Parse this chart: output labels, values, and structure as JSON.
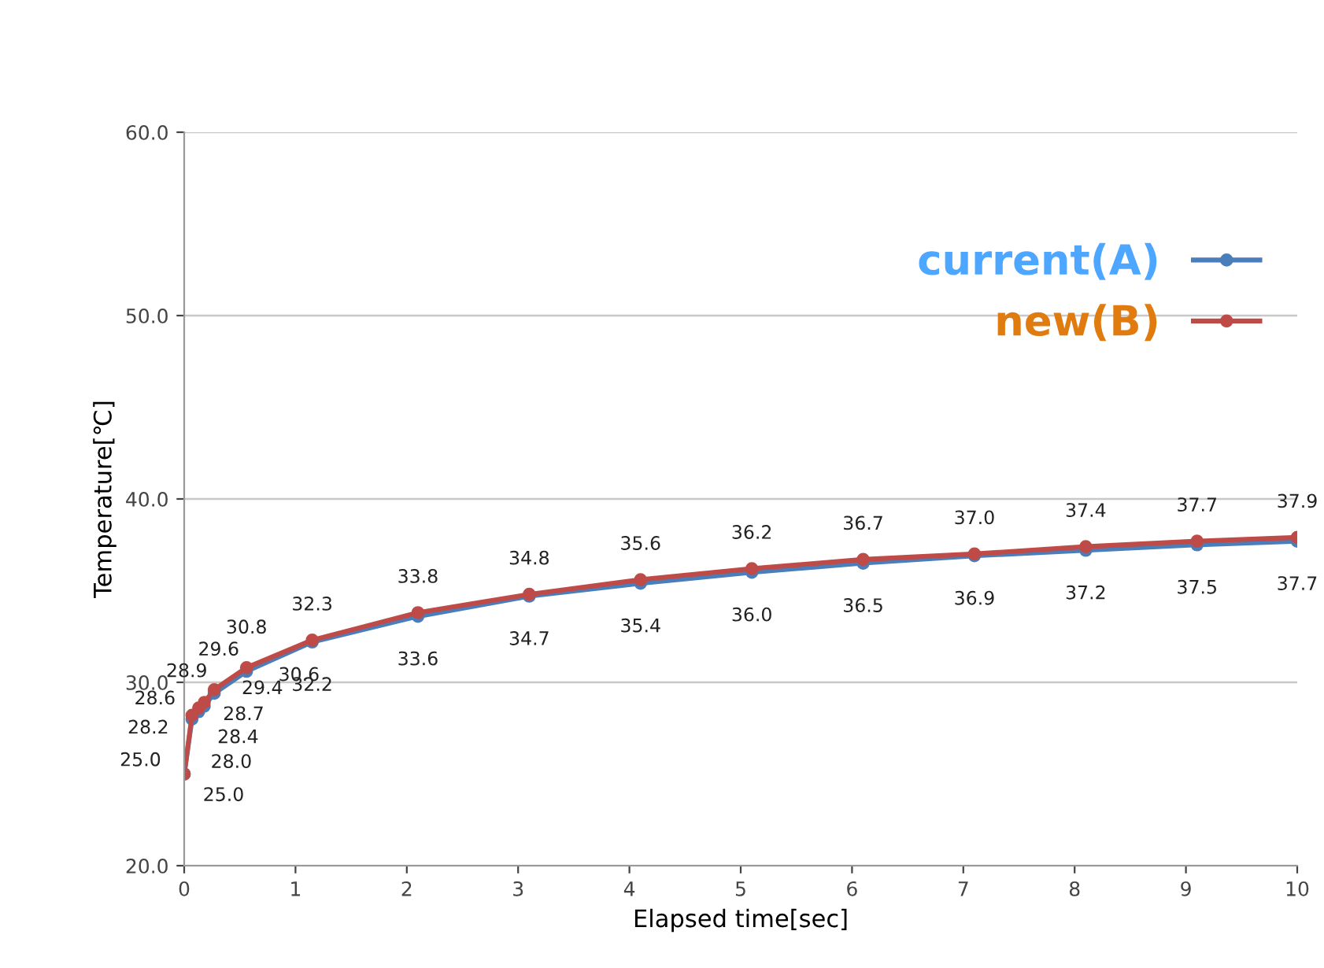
{
  "chart_data": {
    "type": "line",
    "xlabel": "Elapsed time[sec]",
    "ylabel": "Temperature[℃]",
    "xlim": [
      0,
      10
    ],
    "xticks": [
      0,
      1,
      2,
      3,
      4,
      5,
      6,
      7,
      8,
      9,
      10
    ],
    "ylim": [
      20,
      60
    ],
    "yticks": [
      {
        "value": 20,
        "label": "20.0"
      },
      {
        "value": 30,
        "label": "30.0"
      },
      {
        "value": 40,
        "label": "40.0"
      },
      {
        "value": 50,
        "label": "50.0"
      },
      {
        "value": 60,
        "label": "60.0"
      }
    ],
    "grid": "y",
    "legend": "right",
    "marker": "circle",
    "x": [
      0,
      0.07,
      0.13,
      0.18,
      0.27,
      0.56,
      1.15,
      2.1,
      3.1,
      4.1,
      5.1,
      6.1,
      7.1,
      8.1,
      9.1,
      10
    ],
    "series": [
      {
        "name": "current(A)",
        "color": "#4a7ebb",
        "values": [
          25.0,
          28.0,
          28.4,
          28.7,
          29.4,
          30.6,
          32.2,
          33.6,
          34.7,
          35.4,
          36.0,
          36.5,
          36.9,
          37.2,
          37.5,
          37.7
        ],
        "value_labels": [
          "25.0",
          "28.0",
          "28.4",
          "28.7",
          "29.4",
          "30.6",
          "32.2",
          "33.6",
          "34.7",
          "35.4",
          "36.0",
          "36.5",
          "36.9",
          "37.2",
          "37.5",
          "37.7"
        ]
      },
      {
        "name": "new(B)",
        "color": "#be4b48",
        "values": [
          25.0,
          28.2,
          28.6,
          28.9,
          29.6,
          30.8,
          32.3,
          33.8,
          34.8,
          35.6,
          36.2,
          36.7,
          37.0,
          37.4,
          37.7,
          37.9
        ],
        "value_labels": [
          "25.0",
          "28.2",
          "28.6",
          "28.9",
          "29.6",
          "30.8",
          "32.3",
          "33.8",
          "34.8",
          "35.6",
          "36.2",
          "36.7",
          "37.0",
          "37.4",
          "37.7",
          "37.9"
        ]
      }
    ]
  }
}
